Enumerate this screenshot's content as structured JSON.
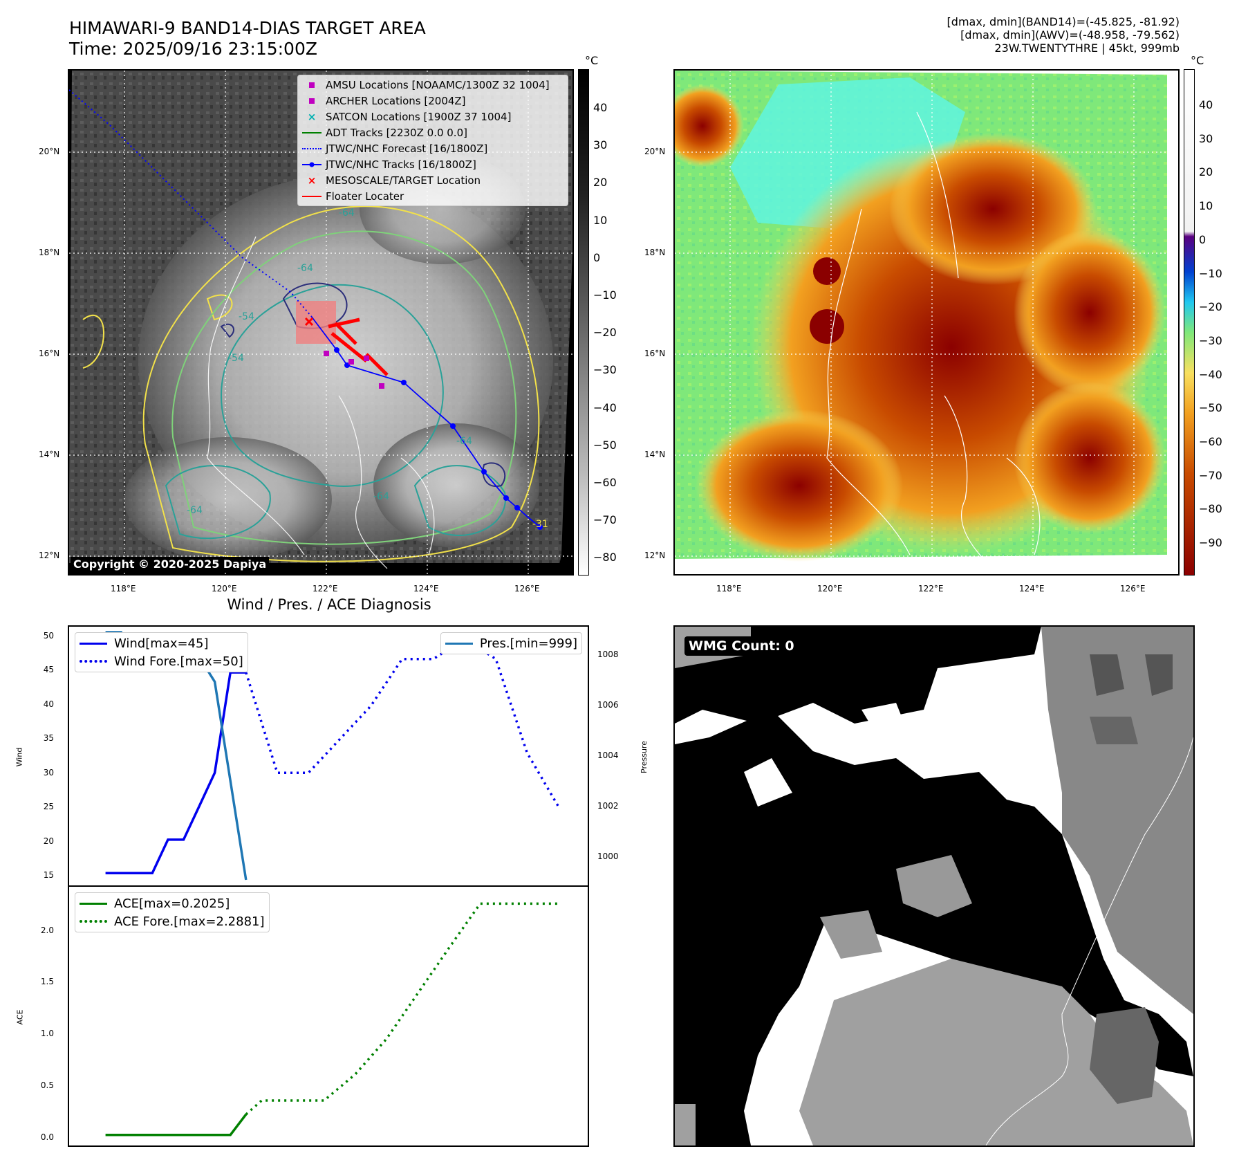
{
  "header": {
    "title_line1": "HIMAWARI-9 BAND14-DIAS TARGET AREA",
    "title_line2": "Time: 2025/09/16 23:15:00Z",
    "info_line1": "[dmax, dmin](BAND14)=(-45.825, -81.92)",
    "info_line2": "[dmax, dmin](AWV)=(-48.958, -79.562)",
    "info_line3": "23W.TWENTYTHRE | 45kt, 999mb"
  },
  "map_axes": {
    "lon_ticks": [
      "118°E",
      "120°E",
      "122°E",
      "124°E",
      "126°E"
    ],
    "lat_ticks": [
      "20°N",
      "18°N",
      "16°N",
      "14°N",
      "12°N"
    ]
  },
  "ir_panel": {
    "colorbar_unit": "°C",
    "colorbar_ticks": [
      "40",
      "30",
      "20",
      "10",
      "0",
      "−10",
      "−20",
      "−30",
      "−40",
      "−50",
      "−60",
      "−70",
      "−80"
    ],
    "copyright": "Copyright © 2020-2025 Dapiya",
    "contour_labels": [
      "-64",
      "-64",
      "-64",
      "-64",
      "-54",
      "-54",
      "-64",
      "-31"
    ],
    "legend": [
      {
        "label": "AMSU Locations [NOAAMC/1300Z 32 1004]",
        "symbol": "square",
        "color": "#c000c0"
      },
      {
        "label": "ARCHER Locations [2004Z]",
        "symbol": "square",
        "color": "#c000c0"
      },
      {
        "label": "SATCON Locations [1900Z 37 1004]",
        "symbol": "x",
        "color": "#00b0b0"
      },
      {
        "label": "ADT Tracks [2230Z 0.0 0.0]",
        "symbol": "line",
        "color": "#008000"
      },
      {
        "label": "JTWC/NHC Forecast [16/1800Z]",
        "symbol": "dotted",
        "color": "#0000ff"
      },
      {
        "label": "JTWC/NHC Tracks [16/1800Z]",
        "symbol": "dotline",
        "color": "#0000ff"
      },
      {
        "label": "MESOSCALE/TARGET Location",
        "symbol": "x",
        "color": "#ff0000"
      },
      {
        "label": "Floater Locater",
        "symbol": "line",
        "color": "#ff0000"
      }
    ]
  },
  "awv_panel": {
    "colorbar_unit": "°C",
    "colorbar_ticks": [
      "40",
      "30",
      "20",
      "10",
      "0",
      "−10",
      "−20",
      "−30",
      "−40",
      "−50",
      "−60",
      "−70",
      "−80",
      "−90"
    ]
  },
  "wmg_panel": {
    "label": "WMG Count: 0"
  },
  "diagnosis": {
    "title": "Wind / Pres. / ACE Diagnosis",
    "wind_ylabel": "Wind",
    "pres_ylabel": "Pressure",
    "ace_ylabel": "ACE",
    "wind_ticks": [
      "50",
      "45",
      "40",
      "35",
      "30",
      "25",
      "20",
      "15"
    ],
    "pres_ticks": [
      "1008",
      "1006",
      "1004",
      "1002",
      "1000"
    ],
    "ace_ticks": [
      "2.0",
      "1.5",
      "1.0",
      "0.5",
      "0.0"
    ],
    "legend_wind": "Wind[max=45]",
    "legend_wind_fore": "Wind Fore.[max=50]",
    "legend_pres": "Pres.[min=999]",
    "legend_ace": "ACE[max=0.2025]",
    "legend_ace_fore": "ACE Fore.[max=2.2881]",
    "colors": {
      "wind": "#0000ee",
      "pres": "#1f77b4",
      "ace": "#008000"
    }
  },
  "chart_data": [
    {
      "type": "line",
      "title": "Wind / Pres. / ACE Diagnosis",
      "ylabel": "Wind",
      "ylim": [
        14,
        51
      ],
      "series": [
        {
          "name": "Wind[max=45]",
          "x": [
            0,
            1,
            2,
            3,
            4,
            5,
            6,
            7,
            8,
            9
          ],
          "values": [
            15,
            15,
            15,
            15,
            20,
            20,
            25,
            30,
            45,
            45
          ],
          "style": "solid"
        },
        {
          "name": "Wind Fore.[max=50]",
          "x": [
            9,
            11,
            13,
            15,
            17,
            19,
            21,
            23,
            25,
            27,
            29
          ],
          "values": [
            45,
            30,
            30,
            35,
            40,
            47,
            47,
            50,
            47,
            33,
            25
          ],
          "style": "dotted"
        }
      ]
    },
    {
      "type": "line",
      "ylabel": "Pressure",
      "ylim": [
        999,
        1009
      ],
      "series": [
        {
          "name": "Pres.[min=999]",
          "x": [
            0,
            1,
            2,
            3,
            4,
            5,
            6,
            7,
            8,
            9
          ],
          "values": [
            1009,
            1009,
            1008,
            1008,
            1008,
            1008,
            1008,
            1007,
            1003,
            999
          ]
        }
      ]
    },
    {
      "type": "line",
      "ylabel": "ACE",
      "ylim": [
        -0.05,
        2.4
      ],
      "series": [
        {
          "name": "ACE[max=0.2025]",
          "x": [
            0,
            2,
            4,
            6,
            8,
            9
          ],
          "values": [
            0,
            0,
            0,
            0,
            0,
            0.2025
          ],
          "style": "solid"
        },
        {
          "name": "ACE Fore.[max=2.2881]",
          "x": [
            9,
            10,
            12,
            14,
            16,
            18,
            20,
            22,
            24,
            26,
            29
          ],
          "values": [
            0.2025,
            0.34,
            0.34,
            0.34,
            0.6,
            0.95,
            1.4,
            1.85,
            2.2881,
            2.2881,
            2.2881
          ],
          "style": "dotted"
        }
      ]
    }
  ]
}
